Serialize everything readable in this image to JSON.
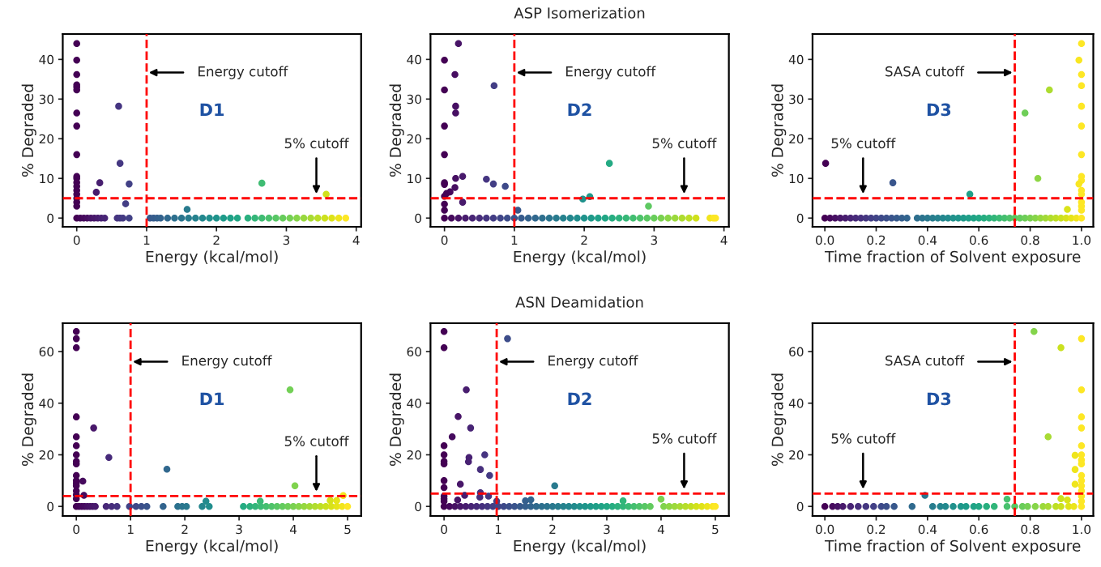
{
  "chart_data": [
    {
      "type": "scatter",
      "marker": "circle",
      "xlabel": "Energy (kcal/mol)",
      "ylabel": "% Degraded",
      "xlim": [
        -0.2,
        4.07
      ],
      "ylim": [
        -2.2,
        46.4
      ],
      "xticks": [
        0,
        1,
        2,
        3,
        4
      ],
      "yticks": [
        0,
        10,
        20,
        30,
        40
      ],
      "x": [
        0,
        0,
        0,
        0,
        0,
        0,
        0,
        0,
        0,
        0,
        0,
        0,
        0,
        0,
        0,
        0,
        0,
        0,
        0,
        0.6,
        0.62,
        0.33,
        0.28,
        0.75,
        0.7,
        1.58,
        2.65,
        3.57,
        0.05,
        0.1,
        0.15,
        0.2,
        0.25,
        0.3,
        0.35,
        0.4,
        0.58,
        0.62,
        0.66,
        0.75,
        1.05,
        1.1,
        1.15,
        1.2,
        1.3,
        1.4,
        1.5,
        1.6,
        1.7,
        1.8,
        1.9,
        2.0,
        2.1,
        2.2,
        2.3,
        2.45,
        2.55,
        2.65,
        2.75,
        2.85,
        2.95,
        3.05,
        3.15,
        3.25,
        3.35,
        3.45,
        3.55,
        3.65,
        3.75,
        3.85
      ],
      "values": [
        44,
        39.8,
        36.2,
        33.6,
        33,
        32.3,
        26.5,
        23.2,
        16,
        10.5,
        10,
        9,
        8,
        7,
        6,
        5,
        4,
        3,
        0,
        28.2,
        13.8,
        8.9,
        6.5,
        8.6,
        3.6,
        2.2,
        8.8,
        6,
        0,
        0,
        0,
        0,
        0,
        0,
        0,
        0,
        0,
        0,
        0,
        0,
        0,
        0,
        0,
        0,
        0,
        0,
        0,
        0,
        0,
        0,
        0,
        0,
        0,
        0,
        0,
        0,
        0,
        0,
        0,
        0,
        0,
        0,
        0,
        0,
        0,
        0,
        0,
        0,
        0,
        0
      ],
      "ref_lines": [
        {
          "axis": "x",
          "value": 1,
          "label": "Energy cutoff",
          "color": "#ff0000",
          "line_style": "dashed"
        },
        {
          "axis": "y",
          "value": 5,
          "label": "5% cutoff",
          "color": "#ff0000",
          "line_style": "dashed"
        }
      ],
      "annotations": [
        "D1"
      ]
    },
    {
      "type": "scatter",
      "marker": "circle",
      "title": "ASP Isomerization",
      "xlabel": "Energy (kcal/mol)",
      "ylabel": "% Degraded",
      "xlim": [
        -0.2,
        4.07
      ],
      "ylim": [
        -2.2,
        46.4
      ],
      "xticks": [
        0,
        1,
        2,
        3,
        4
      ],
      "yticks": [
        0,
        10,
        20,
        30,
        40
      ],
      "x": [
        0,
        0,
        0,
        0,
        0,
        0,
        0,
        0,
        0,
        0,
        0.2,
        0.15,
        0.16,
        0.16,
        0.16,
        0.15,
        0.26,
        0.26,
        0.08,
        0.03,
        0.6,
        0.7,
        0.87,
        0.71,
        1.05,
        1.98,
        2.08,
        2.36,
        2.92,
        0.1,
        0.2,
        0.3,
        0.4,
        0.5,
        0.6,
        0.7,
        0.8,
        0.9,
        1.0,
        1.1,
        1.2,
        1.3,
        1.4,
        1.5,
        1.6,
        1.7,
        1.8,
        1.9,
        2.0,
        2.1,
        2.2,
        2.3,
        2.4,
        2.5,
        2.6,
        2.7,
        2.8,
        2.9,
        3.0,
        3.1,
        3.2,
        3.3,
        3.4,
        3.5,
        3.6,
        3.8,
        3.85,
        3.88
      ],
      "values": [
        39.8,
        32.3,
        23.2,
        16,
        8.9,
        8.5,
        5.5,
        3.5,
        2,
        0,
        44,
        36.2,
        28.2,
        26.5,
        10,
        7.7,
        10.5,
        4,
        6.6,
        6.2,
        9.8,
        8.6,
        8,
        33.4,
        2,
        4.8,
        5.4,
        13.8,
        3,
        0,
        0,
        0,
        0,
        0,
        0,
        0,
        0,
        0,
        0,
        0,
        0,
        0,
        0,
        0,
        0,
        0,
        0,
        0,
        0,
        0,
        0,
        0,
        0,
        0,
        0,
        0,
        0,
        0,
        0,
        0,
        0,
        0,
        0,
        0,
        0,
        0,
        0,
        0
      ],
      "ref_lines": [
        {
          "axis": "x",
          "value": 1,
          "label": "Energy cutoff",
          "color": "#ff0000",
          "line_style": "dashed"
        },
        {
          "axis": "y",
          "value": 5,
          "label": "5% cutoff",
          "color": "#ff0000",
          "line_style": "dashed"
        }
      ],
      "annotations": [
        "D2"
      ]
    },
    {
      "type": "scatter",
      "marker": "circle",
      "xlabel": "Time fraction of Solvent exposure",
      "ylabel": "% Degraded",
      "xlim": [
        -0.048,
        1.046
      ],
      "ylim": [
        -2.2,
        46.4
      ],
      "xticks": [
        {
          "value": 0,
          "label": "0.0"
        },
        {
          "value": 0.2,
          "label": "0.2"
        },
        {
          "value": 0.4,
          "label": "0.4"
        },
        {
          "value": 0.6,
          "label": "0.6"
        },
        {
          "value": 0.8,
          "label": "0.8"
        },
        {
          "value": 1,
          "label": "1.0"
        }
      ],
      "yticks": [
        0,
        10,
        20,
        30,
        40
      ],
      "x": [
        0.003,
        0.265,
        0.565,
        0.78,
        0.875,
        0.83,
        0.945,
        1,
        0.99,
        1,
        1,
        1,
        1,
        1,
        1,
        1,
        0.99,
        1,
        1,
        1,
        1,
        1,
        0,
        0.02,
        0.04,
        0.06,
        0.08,
        0.1,
        0.12,
        0.14,
        0.16,
        0.18,
        0.2,
        0.22,
        0.24,
        0.26,
        0.28,
        0.3,
        0.32,
        0.36,
        0.38,
        0.4,
        0.42,
        0.44,
        0.46,
        0.48,
        0.5,
        0.52,
        0.54,
        0.56,
        0.58,
        0.6,
        0.62,
        0.64,
        0.66,
        0.68,
        0.7,
        0.72,
        0.74,
        0.76,
        0.78,
        0.8,
        0.82,
        0.84,
        0.86,
        0.88,
        0.9,
        0.92,
        0.94,
        0.96,
        0.98,
        1
      ],
      "values": [
        13.8,
        8.9,
        6,
        26.5,
        32.3,
        10,
        2.2,
        44,
        39.8,
        36.2,
        33.4,
        28.2,
        23.2,
        16,
        10.5,
        9.5,
        8.6,
        7,
        6,
        4,
        3,
        2,
        0,
        0,
        0,
        0,
        0,
        0,
        0,
        0,
        0,
        0,
        0,
        0,
        0,
        0,
        0,
        0,
        0,
        0,
        0,
        0,
        0,
        0,
        0,
        0,
        0,
        0,
        0,
        0,
        0,
        0,
        0,
        0,
        0,
        0,
        0,
        0,
        0,
        0,
        0,
        0,
        0,
        0,
        0,
        0,
        0,
        0,
        0,
        0,
        0,
        0
      ],
      "ref_lines": [
        {
          "axis": "x",
          "value": 0.74,
          "label": "SASA cutoff",
          "color": "#ff0000",
          "line_style": "dashed"
        },
        {
          "axis": "y",
          "value": 5,
          "label": "5% cutoff",
          "color": "#ff0000",
          "line_style": "dashed"
        }
      ],
      "annotations": [
        "D3"
      ]
    },
    {
      "type": "scatter",
      "marker": "circle",
      "xlabel": "Energy (kcal/mol)",
      "ylabel": "% Degraded",
      "xlim": [
        -0.25,
        5.25
      ],
      "ylim": [
        -3.7,
        71
      ],
      "xticks": [
        0,
        1,
        2,
        3,
        4,
        5
      ],
      "yticks": [
        0,
        20,
        40,
        60
      ],
      "x": [
        0,
        0,
        0,
        0,
        0,
        0,
        0,
        0,
        0,
        0,
        0,
        0,
        0,
        0,
        0,
        0,
        0,
        0.12,
        0.14,
        0.32,
        0.6,
        1.67,
        2.39,
        3.39,
        3.94,
        4.03,
        4.68,
        4.8,
        4.92,
        0.05,
        0.1,
        0.15,
        0.2,
        0.25,
        0.3,
        0.35,
        0.55,
        0.65,
        0.75,
        0.98,
        1.1,
        1.2,
        1.3,
        1.6,
        1.87,
        1.95,
        2.03,
        2.32,
        2.45,
        3.08,
        3.2,
        3.3,
        3.4,
        3.5,
        3.6,
        3.7,
        3.8,
        3.9,
        4.0,
        4.1,
        4.2,
        4.3,
        4.4,
        4.5,
        4.6,
        4.7,
        4.8,
        4.9,
        5.0
      ],
      "values": [
        67.8,
        65,
        61.5,
        34.7,
        27,
        23.5,
        20,
        17.5,
        16.5,
        12,
        10,
        9,
        8,
        6,
        4.5,
        3,
        0,
        9.8,
        4.3,
        30.4,
        19,
        14.4,
        2,
        2,
        45.2,
        8,
        2.3,
        2.3,
        4.2,
        0,
        0,
        0,
        0,
        0,
        0,
        0,
        0,
        0,
        0,
        0,
        0,
        0,
        0,
        0,
        0,
        0,
        0,
        0,
        0,
        0,
        0,
        0,
        0,
        0,
        0,
        0,
        0,
        0,
        0,
        0,
        0,
        0,
        0,
        0,
        0,
        0,
        0,
        0,
        0
      ],
      "ref_lines": [
        {
          "axis": "x",
          "value": 1,
          "label": "Energy cutoff",
          "color": "#ff0000",
          "line_style": "dashed"
        },
        {
          "axis": "y",
          "value": 4,
          "label": "5% cutoff",
          "color": "#ff0000",
          "line_style": "dashed"
        }
      ],
      "annotations": [
        "D1"
      ]
    },
    {
      "type": "scatter",
      "marker": "circle",
      "title": "ASN Deamidation",
      "xlabel": "Energy (kcal/mol)",
      "ylabel": "% Degraded",
      "xlim": [
        -0.25,
        5.25
      ],
      "ylim": [
        -3.7,
        71
      ],
      "xticks": [
        0,
        1,
        2,
        3,
        4,
        5
      ],
      "yticks": [
        0,
        20,
        40,
        60
      ],
      "x": [
        0,
        0,
        0,
        0,
        0,
        0,
        0,
        0,
        0,
        0,
        0,
        0,
        0.15,
        0.26,
        0.41,
        0.49,
        0.46,
        0.45,
        0.75,
        0.67,
        0.84,
        0.3,
        0.38,
        0.67,
        0.66,
        0.82,
        0.25,
        0.97,
        1.17,
        1.5,
        1.6,
        2.04,
        3.3,
        4.0,
        0.1,
        0.2,
        0.3,
        0.4,
        0.5,
        0.6,
        0.7,
        0.8,
        0.9,
        1.0,
        1.1,
        1.2,
        1.3,
        1.4,
        1.5,
        1.6,
        1.7,
        1.8,
        1.9,
        2.0,
        2.1,
        2.2,
        2.3,
        2.4,
        2.5,
        2.6,
        2.7,
        2.8,
        2.9,
        3.0,
        3.1,
        3.2,
        3.3,
        3.4,
        3.5,
        3.6,
        3.7,
        3.8,
        4.05,
        4.15,
        4.25,
        4.35,
        4.45,
        4.55,
        4.65,
        4.75,
        4.85,
        4.95,
        5.0
      ],
      "values": [
        67.8,
        61.5,
        23.5,
        20,
        17.5,
        16.5,
        10,
        7.3,
        4,
        3,
        2,
        0,
        27,
        34.8,
        45.2,
        30.4,
        19,
        17.3,
        20,
        14.3,
        12,
        8.6,
        4.3,
        5.3,
        3.6,
        4,
        2.5,
        2,
        65,
        2.2,
        2.6,
        8,
        2.2,
        2.8,
        0,
        0,
        0,
        0,
        0,
        0,
        0,
        0,
        0,
        0,
        0,
        0,
        0,
        0,
        0,
        0,
        0,
        0,
        0,
        0,
        0,
        0,
        0,
        0,
        0,
        0,
        0,
        0,
        0,
        0,
        0,
        0,
        0,
        0,
        0,
        0,
        0,
        0,
        0,
        0,
        0,
        0,
        0,
        0,
        0,
        0,
        0,
        0,
        0
      ],
      "ref_lines": [
        {
          "axis": "x",
          "value": 0.97,
          "label": "Energy cutoff",
          "color": "#ff0000",
          "line_style": "dashed"
        },
        {
          "axis": "y",
          "value": 5,
          "label": "5% cutoff",
          "color": "#ff0000",
          "line_style": "dashed"
        }
      ],
      "annotations": [
        "D2"
      ]
    },
    {
      "type": "scatter",
      "marker": "circle",
      "xlabel": "Time fraction of Solvent exposure",
      "ylabel": "% Degraded",
      "xlim": [
        -0.048,
        1.046
      ],
      "ylim": [
        -3.7,
        71
      ],
      "xticks": [
        {
          "value": 0,
          "label": "0.0"
        },
        {
          "value": 0.2,
          "label": "0.2"
        },
        {
          "value": 0.4,
          "label": "0.4"
        },
        {
          "value": 0.6,
          "label": "0.6"
        },
        {
          "value": 0.8,
          "label": "0.8"
        },
        {
          "value": 1,
          "label": "1.0"
        }
      ],
      "yticks": [
        0,
        20,
        40,
        60
      ],
      "x": [
        0.815,
        0.92,
        1,
        1,
        1,
        1,
        1,
        1,
        1,
        1,
        1,
        1,
        1,
        1,
        1,
        1,
        0.87,
        0.975,
        0.975,
        0.975,
        0.92,
        0.945,
        0.39,
        0.71,
        0,
        0.03,
        0.05,
        0.07,
        0.1,
        0.13,
        0.16,
        0.19,
        0.22,
        0.24,
        0.27,
        0.34,
        0.42,
        0.45,
        0.47,
        0.5,
        0.53,
        0.55,
        0.58,
        0.6,
        0.63,
        0.66,
        0.71,
        0.74,
        0.77,
        0.79,
        0.82,
        0.85,
        0.87,
        0.9,
        0.92,
        0.95,
        0.97,
        1.0
      ],
      "values": [
        67.8,
        61.5,
        65,
        45.2,
        34.7,
        30.4,
        23.5,
        20,
        18,
        16.5,
        12,
        10,
        8,
        6,
        4,
        2,
        27,
        19.8,
        14.3,
        8.6,
        3,
        2.5,
        4.3,
        2.8,
        0,
        0,
        0,
        0,
        0,
        0,
        0,
        0,
        0,
        0,
        0,
        0,
        0,
        0,
        0,
        0,
        0,
        0,
        0,
        0,
        0,
        0,
        0,
        0,
        0,
        0,
        0,
        0,
        0,
        0,
        0,
        0,
        0,
        0
      ],
      "ref_lines": [
        {
          "axis": "x",
          "value": 0.74,
          "label": "SASA cutoff",
          "color": "#ff0000",
          "line_style": "dashed"
        },
        {
          "axis": "y",
          "value": 5,
          "label": "5% cutoff",
          "color": "#ff0000",
          "line_style": "dashed"
        }
      ],
      "annotations": [
        "D3"
      ]
    }
  ]
}
